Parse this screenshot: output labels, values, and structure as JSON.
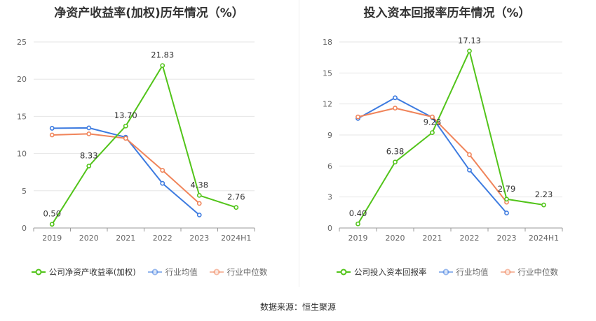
{
  "source_label": "数据来源：恒生聚源",
  "chart_data": [
    {
      "type": "line",
      "title": "净资产收益率(加权)历年情况（%）",
      "categories": [
        "2019",
        "2020",
        "2021",
        "2022",
        "2023",
        "2024H1"
      ],
      "ylim": [
        0,
        25
      ],
      "yticks": [
        0,
        5,
        10,
        15,
        20,
        25
      ],
      "grid": true,
      "legend_position": "bottom",
      "series": [
        {
          "name": "公司净资产收益率(加权)",
          "color": "#52c41a",
          "values": [
            0.5,
            8.33,
            13.7,
            21.83,
            4.38,
            2.76
          ],
          "labels": [
            "0.50",
            "8.33",
            "13.70",
            "21.83",
            "4.38",
            "2.76"
          ]
        },
        {
          "name": "行业均值",
          "color": "#3d7be0",
          "values": [
            13.4,
            13.45,
            12.2,
            6.0,
            1.75,
            null
          ]
        },
        {
          "name": "行业中位数",
          "color": "#f0845a",
          "values": [
            12.5,
            12.65,
            12.05,
            7.75,
            3.3,
            null
          ]
        }
      ]
    },
    {
      "type": "line",
      "title": "投入资本回报率历年情况（%）",
      "categories": [
        "2019",
        "2020",
        "2021",
        "2022",
        "2023",
        "2024H1"
      ],
      "ylim": [
        0,
        18
      ],
      "yticks": [
        0,
        3,
        6,
        9,
        12,
        15,
        18
      ],
      "grid": true,
      "legend_position": "bottom",
      "series": [
        {
          "name": "公司投入资本回报率",
          "color": "#52c41a",
          "values": [
            0.4,
            6.38,
            9.23,
            17.13,
            2.79,
            2.23
          ],
          "labels": [
            "0.40",
            "6.38",
            "9.23",
            "17.13",
            "2.79",
            "2.23"
          ]
        },
        {
          "name": "行业均值",
          "color": "#3d7be0",
          "values": [
            10.6,
            12.6,
            10.7,
            5.6,
            1.45,
            null
          ]
        },
        {
          "name": "行业中位数",
          "color": "#f0845a",
          "values": [
            10.75,
            11.6,
            10.75,
            7.1,
            2.5,
            null
          ]
        }
      ]
    }
  ]
}
